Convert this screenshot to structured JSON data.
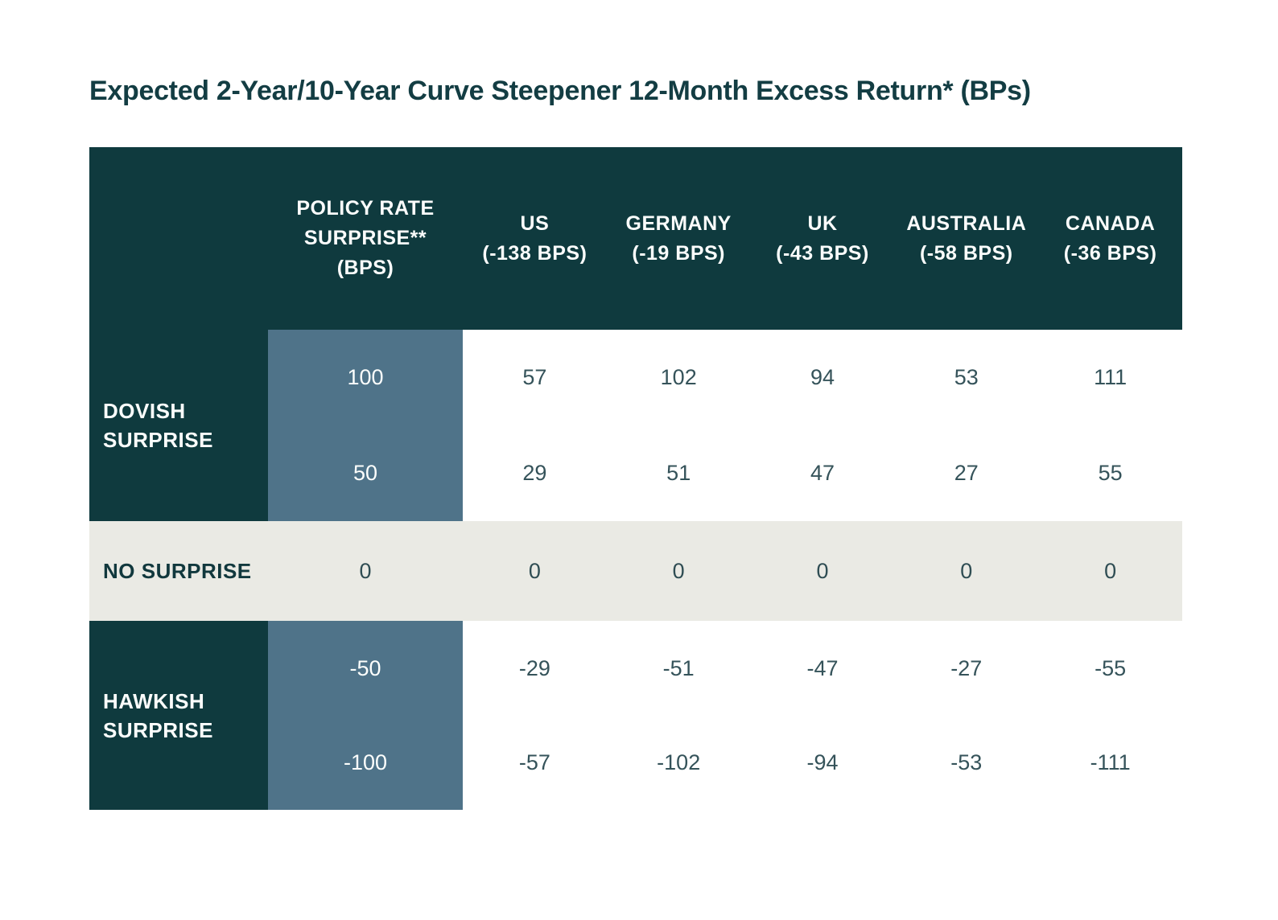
{
  "title": "Expected 2-Year/10-Year Curve Steepener 12-Month Excess Return* (BPs)",
  "colors": {
    "header_bg": "#0f3a3e",
    "policy_col_bg": "#4f7389",
    "no_surprise_bg": "#eaeae4",
    "value_text": "#35535a",
    "header_text": "#ffffff",
    "title_text": "#133d43",
    "page_bg": "#ffffff"
  },
  "header": {
    "policy_lines": [
      "POLICY RATE",
      "SURPRISE**",
      "(BPS)"
    ],
    "countries": [
      {
        "name": "US",
        "shift": "(-138 BPS)"
      },
      {
        "name": "GERMANY",
        "shift": "(-19 BPS)"
      },
      {
        "name": "UK",
        "shift": "(-43 BPS)"
      },
      {
        "name": "AUSTRALIA",
        "shift": "(-58 BPS)"
      },
      {
        "name": "CANADA",
        "shift": "(-36 BPS)"
      }
    ]
  },
  "row_labels": {
    "dovish": [
      "DOVISH",
      "SURPRISE"
    ],
    "no_surprise": "NO SURPRISE",
    "hawkish": [
      "HAWKISH",
      "SURPRISE"
    ]
  },
  "chart_data": {
    "type": "table",
    "title": "Expected 2-Year/10-Year Curve Steepener 12-Month Excess Return* (BPs)",
    "columns": [
      "POLICY RATE SURPRISE** (BPS)",
      "US (-138 BPS)",
      "GERMANY (-19 BPS)",
      "UK (-43 BPS)",
      "AUSTRALIA (-58 BPS)",
      "CANADA (-36 BPS)"
    ],
    "row_groups": [
      {
        "label": "DOVISH SURPRISE",
        "rows": [
          {
            "policy_surprise_bps": 100,
            "values": [
              57,
              102,
              94,
              53,
              111
            ]
          },
          {
            "policy_surprise_bps": 50,
            "values": [
              29,
              51,
              47,
              27,
              55
            ]
          }
        ]
      },
      {
        "label": "NO SURPRISE",
        "rows": [
          {
            "policy_surprise_bps": 0,
            "values": [
              0,
              0,
              0,
              0,
              0
            ]
          }
        ]
      },
      {
        "label": "HAWKISH SURPRISE",
        "rows": [
          {
            "policy_surprise_bps": -50,
            "values": [
              -29,
              -51,
              -47,
              -27,
              -55
            ]
          },
          {
            "policy_surprise_bps": -100,
            "values": [
              -57,
              -102,
              -94,
              -53,
              -111
            ]
          }
        ]
      }
    ]
  }
}
